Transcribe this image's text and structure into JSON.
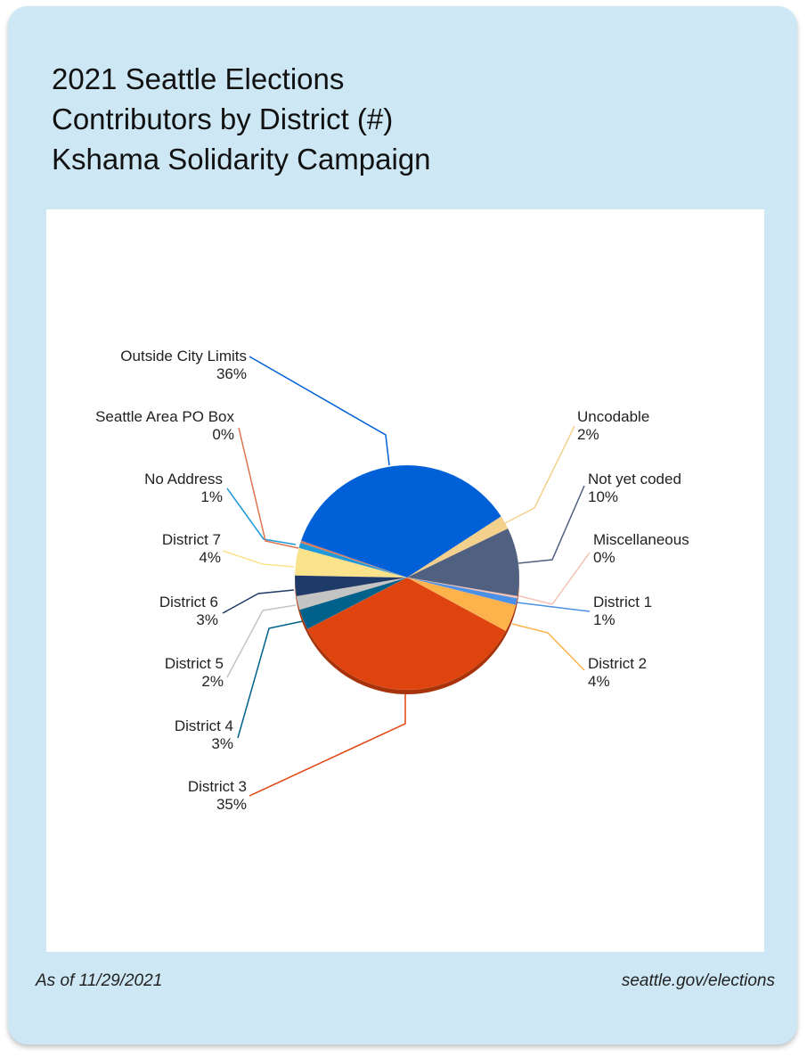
{
  "title_lines": [
    "2021 Seattle Elections",
    "Contributors by District (#)",
    "Kshama Solidarity Campaign"
  ],
  "footer": {
    "date": "As of 11/29/2021",
    "source": "seattle.gov/elections"
  },
  "chart_data": {
    "type": "pie",
    "title": "2021 Seattle Elections Contributors by District (#) Kshama Solidarity Campaign",
    "slices": [
      {
        "label": "Uncodable",
        "pct": "2%",
        "value": 2,
        "color": "#F3D08C"
      },
      {
        "label": "Not yet coded",
        "pct": "10%",
        "value": 10,
        "color": "#4F6080"
      },
      {
        "label": "Miscellaneous",
        "pct": "0%",
        "value": 0.3,
        "color": "#F5C2B8"
      },
      {
        "label": "District 1",
        "pct": "1%",
        "value": 1,
        "color": "#4A8FE8"
      },
      {
        "label": "District 2",
        "pct": "4%",
        "value": 4,
        "color": "#FDB24C"
      },
      {
        "label": "District 3",
        "pct": "35%",
        "value": 35,
        "color": "#E0440E"
      },
      {
        "label": "District 4",
        "pct": "3%",
        "value": 3,
        "color": "#00618A"
      },
      {
        "label": "District 5",
        "pct": "2%",
        "value": 2,
        "color": "#C4C4C4"
      },
      {
        "label": "District 6",
        "pct": "3%",
        "value": 3,
        "color": "#1E3A68"
      },
      {
        "label": "District 7",
        "pct": "4%",
        "value": 4,
        "color": "#FBE38C"
      },
      {
        "label": "No Address",
        "pct": "1%",
        "value": 0.8,
        "color": "#1F9AD8"
      },
      {
        "label": "Seattle Area PO Box",
        "pct": "0%",
        "value": 0.3,
        "color": "#E0744E"
      },
      {
        "label": "Outside City Limits",
        "pct": "36%",
        "value": 36,
        "color": "#0060D8"
      }
    ]
  }
}
